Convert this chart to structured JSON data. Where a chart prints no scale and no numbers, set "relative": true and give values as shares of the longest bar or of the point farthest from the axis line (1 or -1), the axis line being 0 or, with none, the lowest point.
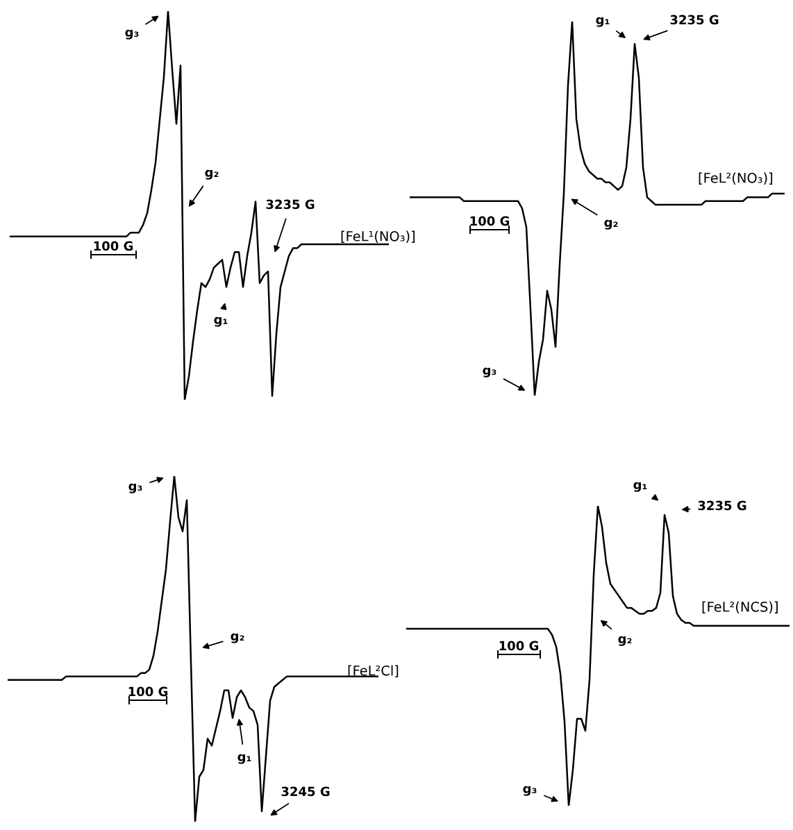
{
  "chart_data": [
    {
      "type": "line",
      "relative": true,
      "tick_labels": false,
      "categories": [
        null,
        null,
        null,
        null,
        null,
        null,
        null,
        null,
        null,
        null,
        null,
        null,
        null,
        null,
        null,
        null,
        null,
        null,
        null,
        null,
        null,
        null,
        null,
        null,
        null,
        null,
        null,
        null,
        null,
        null,
        null,
        null,
        null,
        null,
        null,
        null,
        null,
        null,
        null,
        null,
        null,
        null,
        null,
        null,
        null,
        null,
        null,
        null,
        null,
        null,
        null,
        null,
        null,
        null,
        null,
        null,
        null,
        null,
        null,
        null,
        null,
        null,
        null,
        null,
        null,
        null,
        null,
        null,
        null,
        null,
        null,
        null,
        null,
        null,
        null,
        null,
        null,
        null,
        null,
        null,
        null,
        null,
        null,
        null,
        null,
        null,
        null,
        null,
        null,
        null,
        null,
        null
      ],
      "series": [
        {
          "name": "[FeL¹(NO₃)]",
          "color": "#000000",
          "values": [
            0.42,
            0.42,
            0.42,
            0.42,
            0.42,
            0.42,
            0.42,
            0.42,
            0.42,
            0.42,
            0.42,
            0.42,
            0.42,
            0.42,
            0.42,
            0.42,
            0.42,
            0.42,
            0.42,
            0.42,
            0.42,
            0.42,
            0.42,
            0.42,
            0.42,
            0.42,
            0.42,
            0.42,
            0.42,
            0.43,
            0.43,
            0.43,
            0.45,
            0.48,
            0.54,
            0.61,
            0.72,
            0.83,
            1,
            0.85,
            0.71,
            0.86,
            0,
            0.06,
            0.15,
            0.23,
            0.3,
            0.29,
            0.31,
            0.34,
            0.35,
            0.36,
            0.29,
            0.34,
            0.38,
            0.38,
            0.29,
            0.37,
            0.43,
            0.51,
            0.3,
            0.32,
            0.33,
            0.01,
            0.17,
            0.29,
            0.33,
            0.37,
            0.39,
            0.39,
            0.4,
            0.4,
            0.4,
            0.4,
            0.4,
            0.4,
            0.4,
            0.4,
            0.4,
            0.4,
            0.4,
            0.4,
            0.4,
            0.4,
            0.4,
            0.4,
            0.4,
            0.4,
            0.4,
            0.4,
            0.4,
            0.4
          ]
        }
      ],
      "annotations": [
        "g₃",
        "g₂",
        "3235 G",
        "g₁",
        "100 G"
      ]
    },
    {
      "type": "line",
      "relative": true,
      "tick_labels": false,
      "categories": [
        null,
        null,
        null,
        null,
        null,
        null,
        null,
        null,
        null,
        null,
        null,
        null,
        null,
        null,
        null,
        null,
        null,
        null,
        null,
        null,
        null,
        null,
        null,
        null,
        null,
        null,
        null,
        null,
        null,
        null,
        null,
        null,
        null,
        null,
        null,
        null,
        null,
        null,
        null,
        null,
        null,
        null,
        null,
        null,
        null,
        null,
        null,
        null,
        null,
        null,
        null,
        null,
        null,
        null,
        null,
        null,
        null,
        null,
        null,
        null,
        null,
        null,
        null,
        null,
        null,
        null,
        null,
        null,
        null,
        null,
        null,
        null,
        null,
        null,
        null,
        null,
        null,
        null,
        null,
        null,
        null,
        null,
        null,
        null,
        null,
        null,
        null,
        null,
        null,
        null,
        null
      ],
      "series": [
        {
          "name": "[FeL²(NO₃)]",
          "color": "#000000",
          "values": [
            0.53,
            0.53,
            0.53,
            0.53,
            0.53,
            0.53,
            0.53,
            0.53,
            0.53,
            0.53,
            0.53,
            0.53,
            0.53,
            0.52,
            0.52,
            0.52,
            0.52,
            0.52,
            0.52,
            0.52,
            0.52,
            0.52,
            0.52,
            0.52,
            0.52,
            0.52,
            0.52,
            0.5,
            0.45,
            0.23,
            0,
            0.09,
            0.15,
            0.28,
            0.23,
            0.13,
            0.35,
            0.54,
            0.83,
            1,
            0.74,
            0.66,
            0.62,
            0.6,
            0.59,
            0.58,
            0.58,
            0.57,
            0.57,
            0.56,
            0.55,
            0.56,
            0.61,
            0.74,
            0.94,
            0.85,
            0.61,
            0.53,
            0.52,
            0.51,
            0.51,
            0.51,
            0.51,
            0.51,
            0.51,
            0.51,
            0.51,
            0.51,
            0.51,
            0.51,
            0.51,
            0.52,
            0.52,
            0.52,
            0.52,
            0.52,
            0.52,
            0.52,
            0.52,
            0.52,
            0.52,
            0.53,
            0.53,
            0.53,
            0.53,
            0.53,
            0.53,
            0.54,
            0.54,
            0.54,
            0.54
          ]
        }
      ],
      "annotations": [
        "g₁",
        "3235 G",
        "g₂",
        "g₃",
        "100 G"
      ]
    },
    {
      "type": "line",
      "relative": true,
      "tick_labels": false,
      "categories": [
        null,
        null,
        null,
        null,
        null,
        null,
        null,
        null,
        null,
        null,
        null,
        null,
        null,
        null,
        null,
        null,
        null,
        null,
        null,
        null,
        null,
        null,
        null,
        null,
        null,
        null,
        null,
        null,
        null,
        null,
        null,
        null,
        null,
        null,
        null,
        null,
        null,
        null,
        null,
        null,
        null,
        null,
        null,
        null,
        null,
        null,
        null,
        null,
        null,
        null,
        null,
        null,
        null,
        null,
        null,
        null,
        null,
        null,
        null,
        null,
        null,
        null,
        null,
        null,
        null,
        null,
        null,
        null,
        null,
        null,
        null,
        null,
        null,
        null,
        null,
        null,
        null,
        null,
        null,
        null,
        null,
        null,
        null,
        null,
        null,
        null,
        null,
        null,
        null,
        null
      ],
      "series": [
        {
          "name": "[FeL²Cl]",
          "color": "#000000",
          "values": [
            0.41,
            0.41,
            0.41,
            0.41,
            0.41,
            0.41,
            0.41,
            0.41,
            0.41,
            0.41,
            0.41,
            0.41,
            0.41,
            0.41,
            0.42,
            0.42,
            0.42,
            0.42,
            0.42,
            0.42,
            0.42,
            0.42,
            0.42,
            0.42,
            0.42,
            0.42,
            0.42,
            0.42,
            0.42,
            0.42,
            0.42,
            0.42,
            0.43,
            0.43,
            0.44,
            0.48,
            0.55,
            0.64,
            0.73,
            0.87,
            1,
            0.88,
            0.84,
            0.93,
            0.46,
            0,
            0.13,
            0.15,
            0.24,
            0.22,
            0.27,
            0.32,
            0.38,
            0.38,
            0.3,
            0.36,
            0.38,
            0.36,
            0.33,
            0.32,
            0.28,
            0.03,
            0.19,
            0.35,
            0.39,
            0.4,
            0.41,
            0.42,
            0.42,
            0.42,
            0.42,
            0.42,
            0.42,
            0.42,
            0.42,
            0.42,
            0.42,
            0.42,
            0.42,
            0.42,
            0.42,
            0.42,
            0.42,
            0.42,
            0.42,
            0.42,
            0.42,
            0.42,
            0.42,
            0.42
          ]
        }
      ],
      "annotations": [
        "g₃",
        "g₂",
        "g₁",
        "3245 G",
        "100 G"
      ]
    },
    {
      "type": "line",
      "relative": true,
      "tick_labels": false,
      "categories": [
        null,
        null,
        null,
        null,
        null,
        null,
        null,
        null,
        null,
        null,
        null,
        null,
        null,
        null,
        null,
        null,
        null,
        null,
        null,
        null,
        null,
        null,
        null,
        null,
        null,
        null,
        null,
        null,
        null,
        null,
        null,
        null,
        null,
        null,
        null,
        null,
        null,
        null,
        null,
        null,
        null,
        null,
        null,
        null,
        null,
        null,
        null,
        null,
        null,
        null,
        null,
        null,
        null,
        null,
        null,
        null,
        null,
        null,
        null,
        null,
        null,
        null,
        null,
        null,
        null,
        null,
        null,
        null,
        null,
        null,
        null,
        null,
        null,
        null,
        null,
        null,
        null,
        null,
        null,
        null,
        null,
        null,
        null,
        null,
        null,
        null,
        null,
        null,
        null,
        null,
        null,
        null,
        null
      ],
      "series": [
        {
          "name": "[FeL²(NCS)]",
          "color": "#000000",
          "values": [
            0.59,
            0.59,
            0.59,
            0.59,
            0.59,
            0.59,
            0.59,
            0.59,
            0.59,
            0.59,
            0.59,
            0.59,
            0.59,
            0.59,
            0.59,
            0.59,
            0.59,
            0.59,
            0.59,
            0.59,
            0.59,
            0.59,
            0.59,
            0.59,
            0.59,
            0.59,
            0.59,
            0.59,
            0.59,
            0.59,
            0.59,
            0.59,
            0.59,
            0.59,
            0.59,
            0.57,
            0.53,
            0.44,
            0.28,
            0,
            0.12,
            0.29,
            0.29,
            0.25,
            0.42,
            0.77,
            1,
            0.93,
            0.81,
            0.74,
            0.72,
            0.7,
            0.68,
            0.66,
            0.66,
            0.65,
            0.64,
            0.64,
            0.65,
            0.65,
            0.66,
            0.71,
            0.97,
            0.91,
            0.7,
            0.64,
            0.62,
            0.61,
            0.61,
            0.6,
            0.6,
            0.6,
            0.6,
            0.6,
            0.6,
            0.6,
            0.6,
            0.6,
            0.6,
            0.6,
            0.6,
            0.6,
            0.6,
            0.6,
            0.6,
            0.6,
            0.6,
            0.6,
            0.6,
            0.6,
            0.6,
            0.6,
            0.6
          ]
        }
      ],
      "annotations": [
        "g₁",
        "3235 G",
        "g₂",
        "g₃",
        "100 G"
      ]
    }
  ]
}
